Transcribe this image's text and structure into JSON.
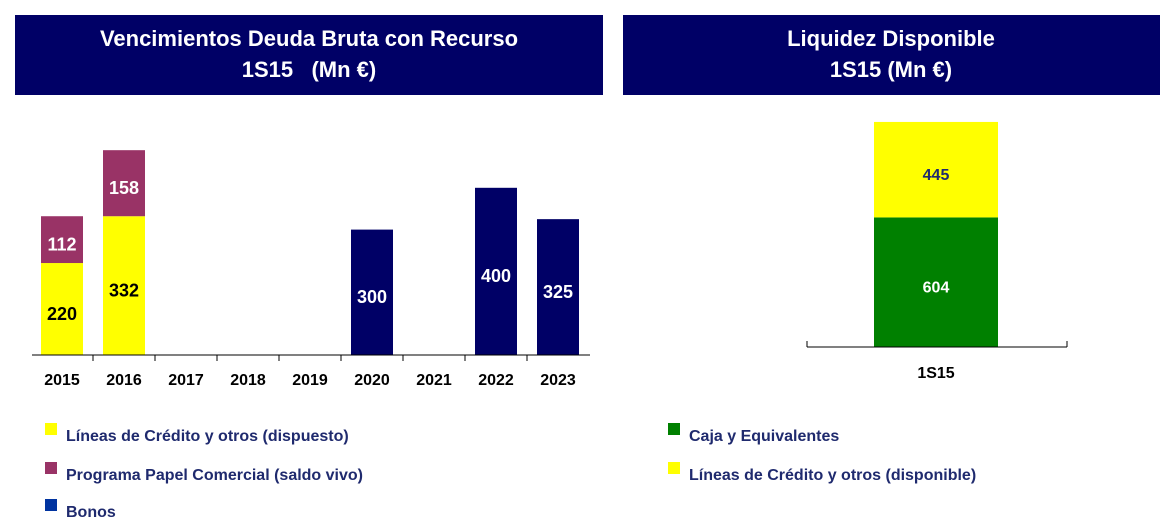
{
  "chart_data": [
    {
      "type": "stacked_bar",
      "title": "Vencimientos Deuda Bruta con Recurso",
      "subtitle": "1S15   (Mn €)",
      "categories": [
        "2015",
        "2016",
        "2017",
        "2018",
        "2019",
        "2020",
        "2021",
        "2022",
        "2023"
      ],
      "series": [
        {
          "name": "Líneas de Crédito y otros (dispuesto)",
          "color": "#ffff00",
          "values": [
            220,
            332,
            null,
            null,
            null,
            null,
            null,
            null,
            null
          ]
        },
        {
          "name": "Programa Papel Comercial (saldo vivo)",
          "color": "#993366",
          "values": [
            112,
            158,
            null,
            null,
            null,
            null,
            null,
            null,
            null
          ]
        },
        {
          "name": "Bonos",
          "color": "#000066",
          "values": [
            null,
            null,
            null,
            null,
            null,
            300,
            null,
            400,
            325
          ]
        }
      ],
      "ylim": [
        0,
        500
      ]
    },
    {
      "type": "stacked_bar",
      "title": "Liquidez Disponible",
      "subtitle": "1S15 (Mn €)",
      "categories": [
        "1S15"
      ],
      "series": [
        {
          "name": "Caja y Equivalentes",
          "color": "#008000",
          "values": [
            604
          ]
        },
        {
          "name": "Líneas de Crédito y otros (disponible)",
          "color": "#ffff00",
          "values": [
            445
          ]
        }
      ],
      "ylim": [
        0,
        1100
      ]
    }
  ]
}
